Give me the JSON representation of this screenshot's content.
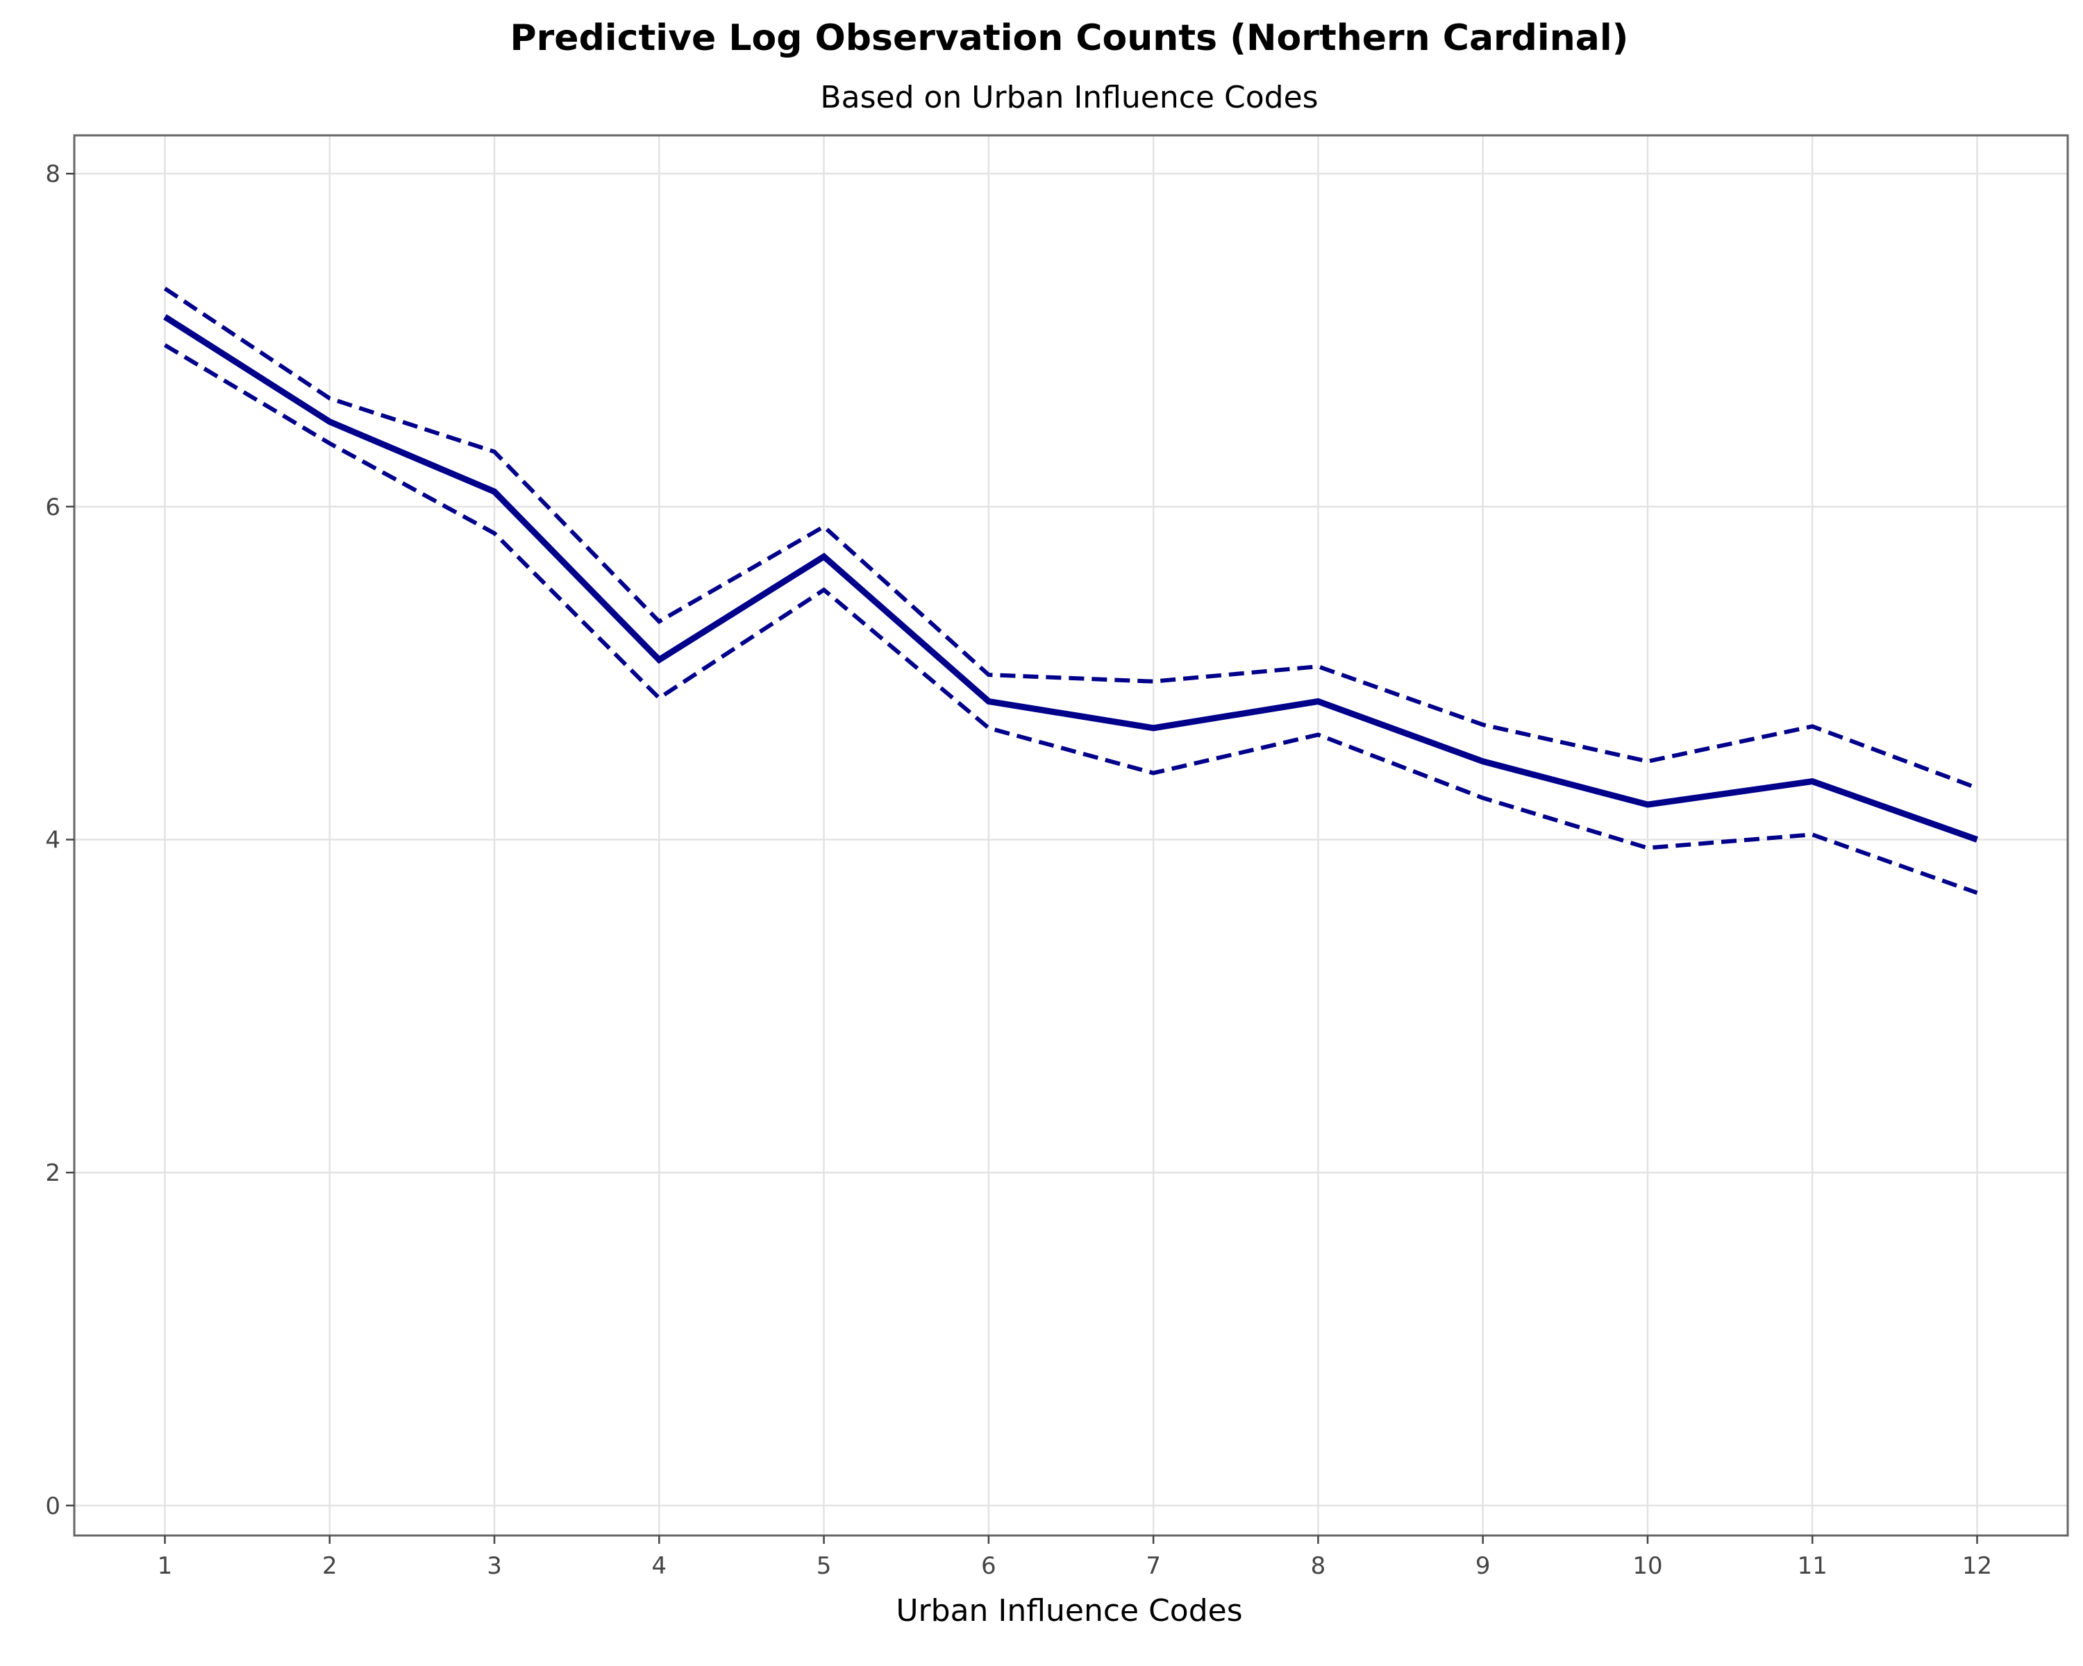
{
  "chart_data": {
    "type": "line",
    "title": "Predictive Log Observation Counts (Northern Cardinal)",
    "subtitle": "Based on Urban Influence Codes",
    "xlabel": "Urban Influence Codes",
    "ylabel": "",
    "x": [
      1,
      2,
      3,
      4,
      5,
      6,
      7,
      8,
      9,
      10,
      11,
      12
    ],
    "x_tick_labels": [
      "1",
      "2",
      "3",
      "4",
      "5",
      "6",
      "7",
      "8",
      "9",
      "10",
      "11",
      "12"
    ],
    "y_tick_values": [
      0,
      2,
      4,
      6,
      8
    ],
    "y_tick_labels": [
      "0",
      "2",
      "4",
      "6",
      "8"
    ],
    "xlim": [
      0.45,
      12.55
    ],
    "ylim": [
      -0.18,
      8.23
    ],
    "grid": true,
    "legend": "none",
    "series": [
      {
        "key": "predicted",
        "style": "solid",
        "color": "#00008b",
        "values": [
          7.14,
          6.51,
          6.09,
          5.08,
          5.7,
          4.83,
          4.67,
          4.83,
          4.47,
          4.21,
          4.35,
          4.0
        ]
      },
      {
        "key": "upper",
        "style": "dashed",
        "color": "#00008b",
        "values": [
          7.31,
          6.65,
          6.33,
          5.31,
          5.88,
          4.99,
          4.95,
          5.04,
          4.69,
          4.47,
          4.68,
          4.31
        ]
      },
      {
        "key": "lower",
        "style": "dashed",
        "color": "#00008b",
        "values": [
          6.97,
          6.38,
          5.84,
          4.85,
          5.5,
          4.67,
          4.4,
          4.63,
          4.25,
          3.95,
          4.03,
          3.68
        ]
      }
    ]
  }
}
